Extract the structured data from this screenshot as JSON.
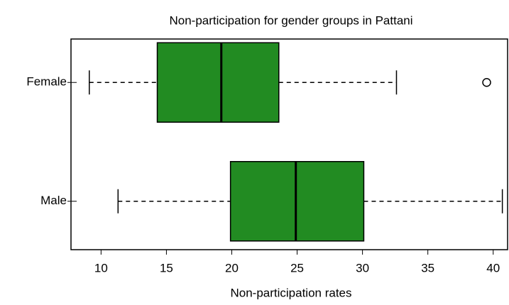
{
  "chart_data": {
    "type": "boxplot",
    "orientation": "horizontal",
    "title": "Non-participation for gender groups in Pattani",
    "xlabel": "Non-participation rates",
    "categories": [
      "Female",
      "Male"
    ],
    "color": "#228b22",
    "boxes": [
      {
        "whislo": 9.1,
        "q1": 14.3,
        "med": 19.2,
        "q3": 23.6,
        "whishi": 32.6,
        "fliers": [
          39.5
        ]
      },
      {
        "whislo": 11.3,
        "q1": 19.9,
        "med": 24.9,
        "q3": 30.1,
        "whishi": 40.7,
        "fliers": []
      }
    ],
    "xlim": [
      7.7,
      41.1
    ],
    "xticks": [
      10,
      15,
      20,
      25,
      30,
      35,
      40
    ]
  }
}
